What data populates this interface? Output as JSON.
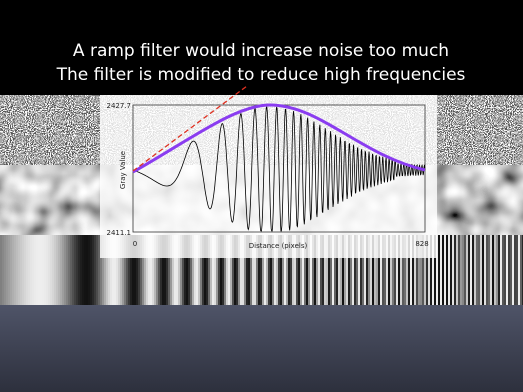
{
  "slide": {
    "title_lines": [
      "A ramp filter would increase noise too much",
      "The filter is modified to reduce high frequencies"
    ]
  },
  "plot": {
    "y_axis_label": "Gray Value",
    "x_axis_label": "Distance (pixels)",
    "y_top_label": "2427.7",
    "y_bottom_label": "2411.1",
    "x_left_label": "0",
    "x_right_label": "828"
  }
}
